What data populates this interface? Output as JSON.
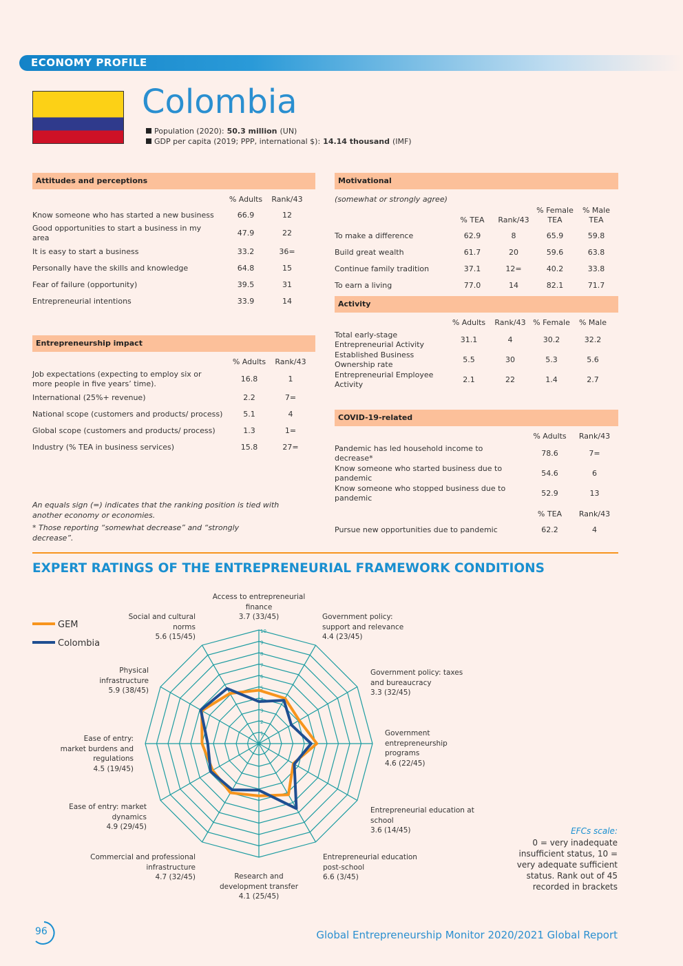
{
  "header": {
    "section": "ECONOMY PROFILE",
    "country": "Colombia",
    "facts": [
      {
        "label": "Population (2020):",
        "value": "50.3 million",
        "source": "(UN)"
      },
      {
        "label": "GDP per capita (2019; PPP, international $):",
        "value": "14.14 thousand",
        "source": "(IMF)"
      }
    ]
  },
  "attitudes": {
    "title": "Attitudes and perceptions",
    "groups": [
      {
        "columns": [
          "% Adults",
          "Rank/43"
        ],
        "rows": [
          [
            "Know someone who has started a new business",
            "66.9",
            "12"
          ],
          [
            "Good opportunities to start a business in my area",
            "47.9",
            "22"
          ],
          [
            "It is easy to start a business",
            "33.2",
            "36="
          ],
          [
            "Personally have the skills and knowledge",
            "64.8",
            "15"
          ],
          [
            "Fear of failure (opportunity)",
            "39.5",
            "31"
          ],
          [
            "Entrepreneurial intentions",
            "33.9",
            "14"
          ]
        ]
      }
    ]
  },
  "impact": {
    "title": "Entrepreneurship impact",
    "groups": [
      {
        "columns": [
          "% Adults",
          "Rank/43"
        ],
        "rows": [
          [
            "Job expectations (expecting to employ six or more people in five years’ time).",
            "16.8",
            "1"
          ],
          [
            "International (25%+ revenue)",
            "2.2",
            "7="
          ],
          [
            "National scope (customers and products/ process)",
            "5.1",
            "4"
          ],
          [
            "Global scope (customers and products/ process)",
            "1.3",
            "1="
          ],
          [
            "Industry (% TEA in business services)",
            "15.8",
            "27="
          ]
        ]
      }
    ]
  },
  "notes": [
    "An equals sign (=) indicates that the ranking position is tied with another economy or economies.",
    "* Those reporting “somewhat decrease” and “strongly decrease”."
  ],
  "motivational": {
    "title": "Motivational",
    "note": "(somewhat or strongly agree)",
    "groups": [
      {
        "columns": [
          "% TEA",
          "Rank/43",
          "% Female TEA",
          "% Male TEA"
        ],
        "rows": [
          [
            "To make a difference",
            "62.9",
            "8",
            "65.9",
            "59.8"
          ],
          [
            "Build great wealth",
            "61.7",
            "20",
            "59.6",
            "63.8"
          ],
          [
            "Continue family tradition",
            "37.1",
            "12=",
            "40.2",
            "33.8"
          ],
          [
            "To earn a living",
            "77.0",
            "14",
            "82.1",
            "71.7"
          ]
        ]
      }
    ]
  },
  "activity": {
    "title": "Activity",
    "groups": [
      {
        "columns": [
          "% Adults",
          "Rank/43",
          "% Female",
          "% Male"
        ],
        "rows": [
          [
            "Total early-stage Entrepreneurial Activity",
            "31.1",
            "4",
            "30.2",
            "32.2"
          ],
          [
            "Established Business Ownership rate",
            "5.5",
            "30",
            "5.3",
            "5.6"
          ],
          [
            "Entrepreneurial Employee Activity",
            "2.1",
            "22",
            "1.4",
            "2.7"
          ]
        ]
      }
    ]
  },
  "covid": {
    "title": "COVID-19-related",
    "groups": [
      {
        "columns": [
          "% Adults",
          "Rank/43"
        ],
        "rows": [
          [
            "Pandemic has led household income to decrease*",
            "78.6",
            "7="
          ],
          [
            "Know someone who started business due to pandemic",
            "54.6",
            "6"
          ],
          [
            "Know someone who stopped business due to pandemic",
            "52.9",
            "13"
          ]
        ]
      },
      {
        "columns": [
          "% TEA",
          "Rank/43"
        ],
        "rows": [
          [
            "Pursue new opportunities due to pandemic",
            "62.2",
            "4"
          ]
        ]
      }
    ]
  },
  "chart_data": {
    "type": "radar",
    "title": "EXPERT RATINGS OF THE ENTREPRENEURIAL FRAMEWORK CONDITIONS",
    "categories": [
      "Access to entrepreneurial finance",
      "Government policy: support and relevance",
      "Government policy: taxes and bureaucracy",
      "Government entrepreneurship programs",
      "Entrepreneurial education at school",
      "Entrepreneurial education post-school",
      "Research and development transfer",
      "Commercial and professional infrastructure",
      "Ease of entry: market dynamics",
      "Ease of entry: market burdens and regulations",
      "Physical infrastructure",
      "Social and cultural norms"
    ],
    "series": [
      {
        "name": "GEM",
        "color": "#f7941d",
        "values": [
          4.7,
          4.6,
          4.1,
          5.1,
          3.5,
          5.2,
          4.6,
          5.0,
          4.7,
          5.0,
          5.8,
          5.1
        ]
      },
      {
        "name": "Colombia",
        "color": "#1f4e91",
        "values": [
          3.7,
          4.4,
          3.3,
          4.6,
          3.6,
          6.6,
          4.1,
          4.7,
          4.9,
          4.5,
          5.9,
          5.6
        ],
        "value_labels": [
          "3.7 (33/45)",
          "4.4 (23/45)",
          "3.3 (32/45)",
          "4.6 (22/45)",
          "3.6 (14/45)",
          "6.6 (3/45)",
          "4.1 (25/45)",
          "4.7 (32/45)",
          "4.9 (29/45)",
          "4.5 (19/45)",
          "5.9 (38/45)",
          "5.6 (15/45)"
        ]
      }
    ],
    "rlim": [
      0,
      10
    ],
    "rticks": [
      1,
      2,
      3,
      4,
      5,
      6,
      7,
      8,
      9,
      10
    ],
    "grid": true,
    "grid_color": "#1a9ba0",
    "legend": "upper left"
  },
  "scale_note": {
    "title": "EFCs scale:",
    "text": "0 = very inadequate insufficient status, 10 = very adequate sufficient status. Rank out of 45 recorded in brackets"
  },
  "footer": {
    "page": "96",
    "report": "Global Entrepreneurship Monitor 2020/2021 Global Report"
  }
}
